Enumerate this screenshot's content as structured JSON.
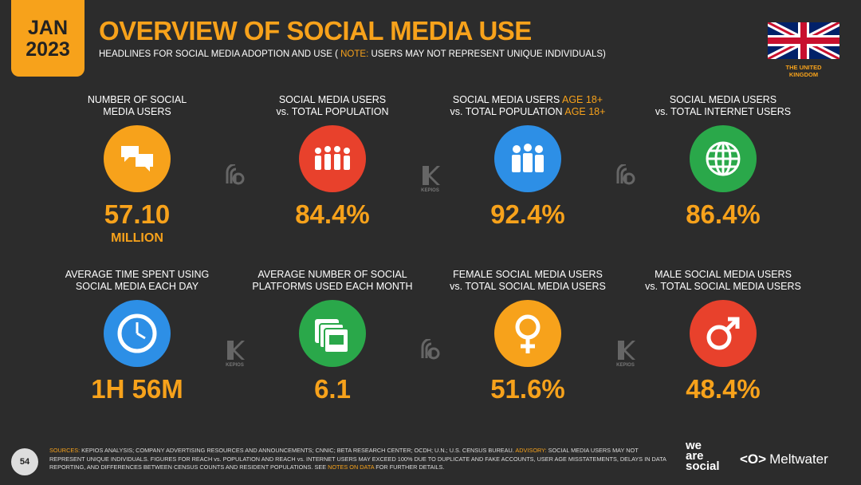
{
  "header": {
    "badge": [
      "JAN",
      "2023"
    ],
    "title": "OVERVIEW OF SOCIAL MEDIA USE",
    "subtitle": [
      {
        "text": "HEADLINES FOR SOCIAL MEDIA ADOPTION AND USE ("
      },
      {
        "text": "NOTE:",
        "accent": true
      },
      {
        "text": "USERS MAY NOT REPRESENT UNIQUE INDIVIDUALS)"
      }
    ],
    "country": [
      "THE UNITED",
      "KINGDOM"
    ]
  },
  "tiles": [
    {
      "label": [
        {
          "text": "NUMBER OF SOCIAL"
        },
        {
          "text": "MEDIA USERS"
        }
      ],
      "value": "57.10",
      "unit": "MILLION",
      "icon_color": "#f7a21b"
    },
    {
      "label": [
        {
          "text": "SOCIAL MEDIA USERS"
        },
        {
          "text": "vs. TOTAL POPULATION"
        }
      ],
      "value": "84.4%",
      "icon_color": "#e8412c"
    },
    {
      "label": [
        {
          "text": "SOCIAL MEDIA USERS",
          "accent": "AGE 18+"
        },
        {
          "text": "vs. TOTAL POPULATION",
          "accent": "AGE 18+"
        }
      ],
      "value": "92.4%",
      "icon_color": "#2d8fe6"
    },
    {
      "label": [
        {
          "text": "SOCIAL MEDIA USERS"
        },
        {
          "text": "vs. TOTAL INTERNET USERS"
        }
      ],
      "value": "86.4%",
      "icon_color": "#2aa84a"
    },
    {
      "label": [
        {
          "text": "AVERAGE TIME SPENT USING"
        },
        {
          "text": "SOCIAL MEDIA EACH DAY"
        }
      ],
      "value": "1H 56M",
      "icon_color": "#2d8fe6"
    },
    {
      "label": [
        {
          "text": "AVERAGE NUMBER OF SOCIAL"
        },
        {
          "text": "PLATFORMS USED EACH MONTH"
        }
      ],
      "value": "6.1",
      "icon_color": "#2aa84a"
    },
    {
      "label": [
        {
          "text": "FEMALE SOCIAL MEDIA USERS"
        },
        {
          "text": "vs. TOTAL SOCIAL MEDIA USERS"
        }
      ],
      "value": "51.6%",
      "icon_color": "#f7a21b"
    },
    {
      "label": [
        {
          "text": "MALE SOCIAL MEDIA USERS"
        },
        {
          "text": "vs. TOTAL SOCIAL MEDIA USERS"
        }
      ],
      "value": "48.4%",
      "icon_color": "#e8412c"
    }
  ],
  "watermark": "KEPIOS",
  "footer": {
    "page": "54",
    "sources": [
      {
        "text": "SOURCES:",
        "accent": true
      },
      {
        "text": "KEPIOS ANALYSIS; COMPANY ADVERTISING RESOURCES AND ANNOUNCEMENTS; CNNIC; BETA RESEARCH CENTER; OCDH; U.N.; U.S. CENSUS BUREAU."
      },
      {
        "text": "ADVISORY:",
        "accent": true
      },
      {
        "text": "SOCIAL MEDIA USERS MAY NOT REPRESENT UNIQUE INDIVIDUALS. FIGURES FOR REACH vs. POPULATION AND REACH vs. INTERNET USERS MAY EXCEED 100% DUE TO DUPLICATE AND FAKE ACCOUNTS, USER AGE MISSTATEMENTS, DELAYS IN DATA REPORTING, AND DIFFERENCES BETWEEN CENSUS COUNTS AND RESIDENT POPULATIONS. SEE"
      },
      {
        "text": "NOTES ON DATA",
        "accent": true
      },
      {
        "text": "FOR FURTHER DETAILS."
      }
    ],
    "logos": [
      [
        "we",
        "are",
        "social"
      ],
      "Meltwater"
    ]
  }
}
